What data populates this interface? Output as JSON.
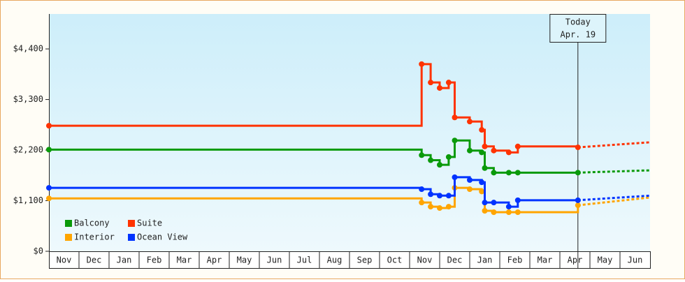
{
  "chart_data": {
    "type": "step-line",
    "categories": [
      "Nov",
      "Dec",
      "Jan",
      "Feb",
      "Mar",
      "Apr",
      "May",
      "Jun",
      "Jul",
      "Aug",
      "Sep",
      "Oct",
      "Nov",
      "Dec",
      "Jan",
      "Feb",
      "Mar",
      "Apr",
      "May",
      "Jun"
    ],
    "x": [
      0,
      12.4,
      12.7,
      13.0,
      13.3,
      13.5,
      14.0,
      14.4,
      14.5,
      14.8,
      15.3,
      15.6,
      17.6,
      20
    ],
    "xlim": [
      0,
      20
    ],
    "ylim": [
      0,
      5160
    ],
    "yticks": [
      {
        "value": 0,
        "label": "$0"
      },
      {
        "value": 1100,
        "label": "$1,100"
      },
      {
        "value": 2200,
        "label": "$2,200"
      },
      {
        "value": 3300,
        "label": "$3,300"
      },
      {
        "value": 4400,
        "label": "$4,400"
      }
    ],
    "grid": false,
    "legend": "lower-left",
    "annotation": {
      "lines": [
        "Today",
        "Apr. 19"
      ],
      "x": 17.6
    },
    "series": [
      {
        "name": "Balcony",
        "color": "#0a9a0a",
        "values": [
          2210,
          2090,
          1980,
          1880,
          2050,
          2410,
          2190,
          2150,
          1810,
          1710,
          1710,
          1710,
          1710,
          1760
        ]
      },
      {
        "name": "Suite",
        "color": "#ff3300",
        "values": [
          2730,
          4070,
          3670,
          3550,
          3670,
          2910,
          2820,
          2640,
          2280,
          2190,
          2150,
          2280,
          2260,
          2370
        ]
      },
      {
        "name": "Interior",
        "color": "#ffa500",
        "values": [
          1150,
          1060,
          970,
          940,
          970,
          1380,
          1350,
          1300,
          880,
          850,
          850,
          850,
          1000,
          1170
        ]
      },
      {
        "name": "Ocean View",
        "color": "#0033ff",
        "values": [
          1380,
          1350,
          1240,
          1210,
          1210,
          1610,
          1550,
          1500,
          1060,
          1060,
          970,
          1110,
          1110,
          1210
        ]
      }
    ]
  }
}
